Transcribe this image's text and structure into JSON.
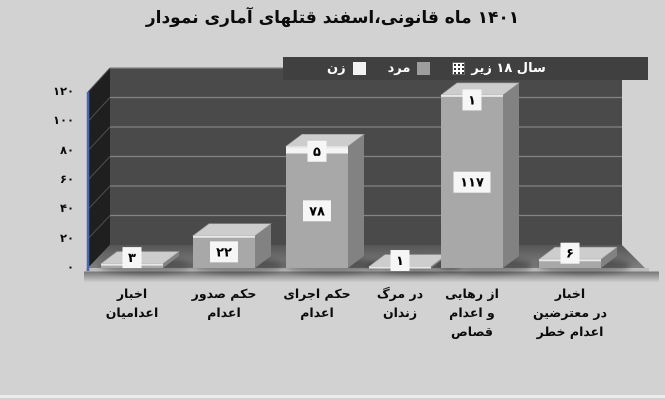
{
  "page": {
    "background": "#d2d2d2"
  },
  "chart_data": {
    "type": "bar",
    "variant": "3d-stacked-boxes",
    "title": "نمودار آماری قتلهای قانونی،اسفند ماه ۱۴۰۱",
    "categories": [
      "اخبار اعدامیان",
      "صدور حکم اعدام",
      "اجرای حکم اعدام",
      "مرگ در زندان",
      "رهایی از اعدام و قصاص",
      "اخبار معترضین در خطر اعدام"
    ],
    "category_label_lines": [
      [
        "اخبار",
        "اعدامیان"
      ],
      [
        "صدور حکم",
        "اعدام"
      ],
      [
        "اجرای حکم",
        "اعدام"
      ],
      [
        "مرگ در",
        "زندان"
      ],
      [
        "رهایی از",
        "اعدام و",
        "قصاص"
      ],
      [
        "اخبار",
        "معترضین در",
        "خطر اعدام"
      ]
    ],
    "series": [
      {
        "name": "مرد",
        "color": "#a8a8a8",
        "values": [
          3,
          22,
          78,
          1,
          117,
          6
        ]
      },
      {
        "name": "زن",
        "color": "#f4f4f4",
        "values": [
          0,
          0,
          5,
          0,
          1,
          0
        ]
      },
      {
        "name": "زیر ۱۸ سال",
        "color": "dotted-black-on-white",
        "values": [
          0,
          0,
          0,
          0,
          0,
          0
        ]
      }
    ],
    "bar_labels": [
      [
        "۳"
      ],
      [
        "۲۲"
      ],
      [
        "۷۸",
        "۵"
      ],
      [
        "۱"
      ],
      [
        "۱۱۷",
        "۱"
      ],
      [
        "۶"
      ]
    ],
    "y_axis": {
      "range": [
        0,
        120
      ],
      "ticks": [
        0,
        20,
        40,
        60,
        80,
        100,
        120
      ],
      "tick_labels": [
        "۰",
        "۲۰",
        "۴۰",
        "۶۰",
        "۸۰",
        "۱۰۰",
        "۱۲۰"
      ]
    },
    "legend": {
      "position": "top",
      "entries": [
        "زن",
        "مرد",
        "زیر ۱۸ سال"
      ]
    },
    "grid": true,
    "colors": {
      "wall": "#4a4a4a",
      "side_wall": "#1f1f1f",
      "gridline": "#858585",
      "floor_front": "#808080",
      "floor_back": "#565656",
      "axis_edge_blue": "#4a66b0",
      "bar_top": "#cdcdcd",
      "bar_side": "#828282",
      "label_box": "#f6f6f6",
      "legend_band": "#404040",
      "text": "#0b0b0b"
    }
  }
}
